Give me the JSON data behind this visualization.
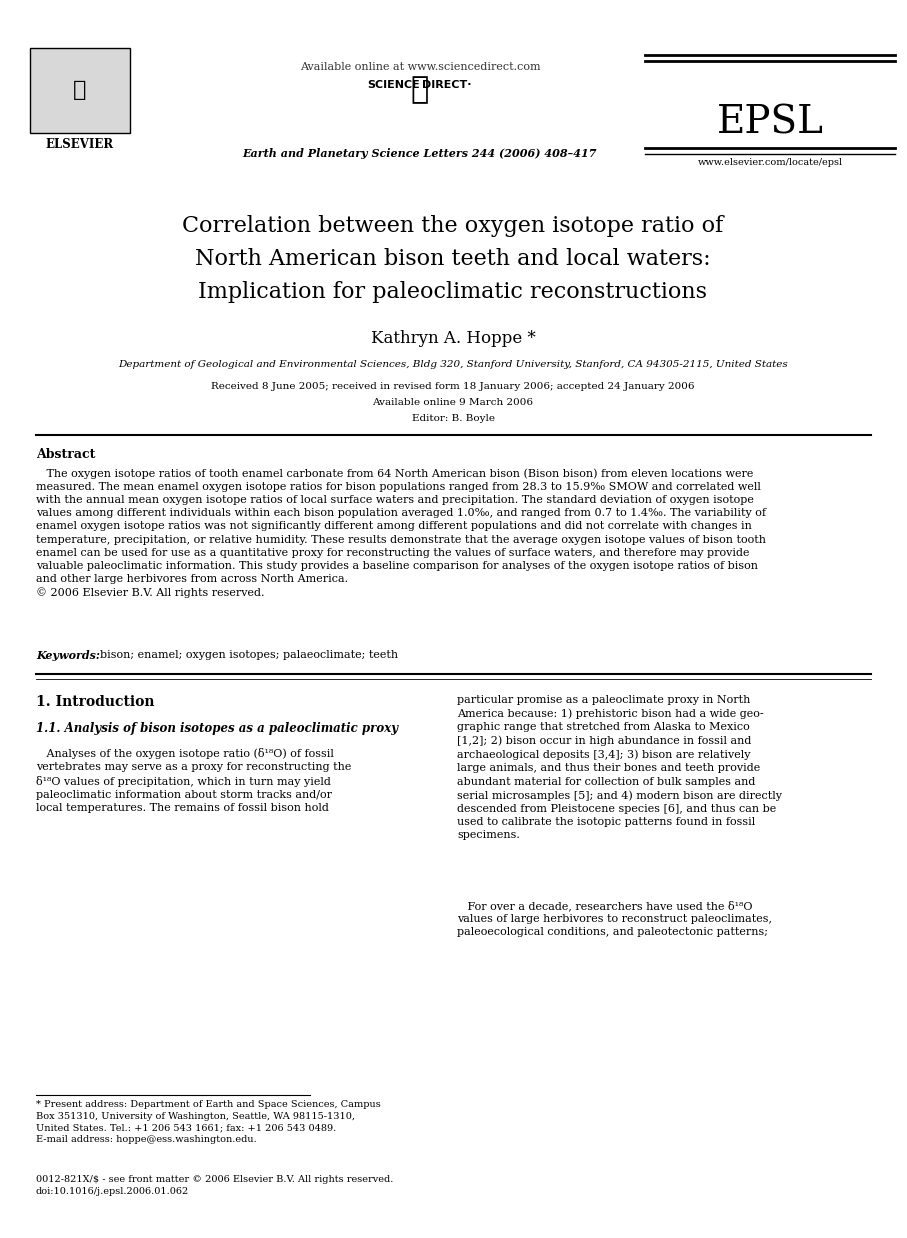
{
  "bg_color": "#ffffff",
  "elsevier_text": "ELSEVIER",
  "available_online": "Available online at www.sciencedirect.com",
  "journal_info": "Earth and Planetary Science Letters 244 (2006) 408–417",
  "epsl_label": "EPSL",
  "www_label": "www.elsevier.com/locate/epsl",
  "title_line1": "Correlation between the oxygen isotope ratio of",
  "title_line2": "North American bison teeth and local waters:",
  "title_line3": "Implication for paleoclimatic reconstructions",
  "author": "Kathryn A. Hoppe *",
  "affiliation": "Department of Geological and Environmental Sciences, Bldg 320, Stanford University, Stanford, CA 94305-2115, United States",
  "received": "Received 8 June 2005; received in revised form 18 January 2006; accepted 24 January 2006",
  "available_online2": "Available online 9 March 2006",
  "editor": "Editor: B. Boyle",
  "abstract_header": "Abstract",
  "abstract_indent": "   The oxygen isotope ratios of tooth enamel carbonate from 64 North American bison (Bison bison) from eleven locations were\nmeasured. The mean enamel oxygen isotope ratios for bison populations ranged from 28.3 to 15.9‰ SMOW and correlated well\nwith the annual mean oxygen isotope ratios of local surface waters and precipitation. The standard deviation of oxygen isotope\nvalues among different individuals within each bison population averaged 1.0‰, and ranged from 0.7 to 1.4‰. The variability of\nenamel oxygen isotope ratios was not significantly different among different populations and did not correlate with changes in\ntemperature, precipitation, or relative humidity. These results demonstrate that the average oxygen isotope values of bison tooth\nenamel can be used for use as a quantitative proxy for reconstructing the values of surface waters, and therefore may provide\nvaluable paleoclimatic information. This study provides a baseline comparison for analyses of the oxygen isotope ratios of bison\nand other large herbivores from across North America.\n© 2006 Elsevier B.V. All rights reserved.",
  "keywords_label": "Keywords:",
  "keywords_rest": "bison; enamel; oxygen isotopes; palaeoclimate; teeth",
  "section1_header": "1. Introduction",
  "subsection1_header": "1.1. Analysis of bison isotopes as a paleoclimatic proxy",
  "col1_para": "   Analyses of the oxygen isotope ratio (δ¹⁸O) of fossil\nvertebrates may serve as a proxy for reconstructing the\nδ¹⁸O values of precipitation, which in turn may yield\npaleoclimatic information about storm tracks and/or\nlocal temperatures. The remains of fossil bison hold",
  "col2_para1": "particular promise as a paleoclimate proxy in North\nAmerica because: 1) prehistoric bison had a wide geo-\ngraphic range that stretched from Alaska to Mexico\n[1,2]; 2) bison occur in high abundance in fossil and\narchaeological deposits [3,4]; 3) bison are relatively\nlarge animals, and thus their bones and teeth provide\nabundant material for collection of bulk samples and\nserial microsamples [5]; and 4) modern bison are directly\ndescended from Pleistocene species [6], and thus can be\nused to calibrate the isotopic patterns found in fossil\nspecimens.",
  "col2_para2": "   For over a decade, researchers have used the δ¹⁸O\nvalues of large herbivores to reconstruct paleoclimates,\npaleoecological conditions, and paleotectonic patterns;",
  "footnote_star": "* Present address: Department of Earth and Space Sciences, Campus\nBox 351310, University of Washington, Seattle, WA 98115-1310,\nUnited States. Tel.: +1 206 543 1661; fax: +1 206 543 0489.\nE-mail address: hoppe@ess.washington.edu.",
  "footnote_issn": "0012-821X/$ - see front matter © 2006 Elsevier B.V. All rights reserved.\ndoi:10.1016/j.epsl.2006.01.062"
}
